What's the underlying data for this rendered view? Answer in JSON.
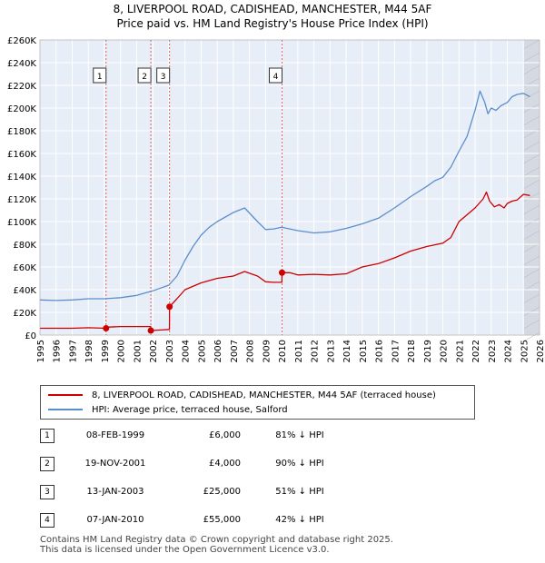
{
  "header": {
    "title_line1": "8, LIVERPOOL ROAD, CADISHEAD, MANCHESTER, M44 5AF",
    "title_line2": "Price paid vs. HM Land Registry's House Price Index (HPI)"
  },
  "legend": {
    "property": "8, LIVERPOOL ROAD, CADISHEAD, MANCHESTER, M44 5AF (terraced house)",
    "hpi": "HPI: Average price, terraced house, Salford"
  },
  "sales": [
    {
      "num": "1",
      "date": "08-FEB-1999",
      "price": "£6,000",
      "hpi": "81% ↓ HPI"
    },
    {
      "num": "2",
      "date": "19-NOV-2001",
      "price": "£4,000",
      "hpi": "90% ↓ HPI"
    },
    {
      "num": "3",
      "date": "13-JAN-2003",
      "price": "£25,000",
      "hpi": "51% ↓ HPI"
    },
    {
      "num": "4",
      "date": "07-JAN-2010",
      "price": "£55,000",
      "hpi": "42% ↓ HPI"
    }
  ],
  "footer": {
    "line1": "Contains HM Land Registry data © Crown copyright and database right 2025.",
    "line2": "This data is licensed under the Open Government Licence v3.0."
  },
  "colors": {
    "property": "#cc0000",
    "hpi": "#5b8fcc",
    "plot_bg": "#e8eef7",
    "grid": "#ffffff",
    "vline": "#e06060"
  },
  "chart_data": {
    "type": "line",
    "title": "8, LIVERPOOL ROAD, CADISHEAD, MANCHESTER, M44 5AF",
    "subtitle": "Price paid vs. HM Land Registry's House Price Index (HPI)",
    "xlim": [
      1995,
      2026
    ],
    "ylim": [
      0,
      260000
    ],
    "x_ticks": [
      "1995",
      "1996",
      "1997",
      "1998",
      "1999",
      "2000",
      "2001",
      "2002",
      "2003",
      "2004",
      "2005",
      "2006",
      "2007",
      "2008",
      "2009",
      "2010",
      "2011",
      "2012",
      "2013",
      "2014",
      "2015",
      "2016",
      "2017",
      "2018",
      "2019",
      "2020",
      "2021",
      "2022",
      "2023",
      "2024",
      "2025",
      "2026"
    ],
    "y_ticks": [
      {
        "v": 0,
        "label": "£0"
      },
      {
        "v": 20000,
        "label": "£20K"
      },
      {
        "v": 40000,
        "label": "£40K"
      },
      {
        "v": 60000,
        "label": "£60K"
      },
      {
        "v": 80000,
        "label": "£80K"
      },
      {
        "v": 100000,
        "label": "£100K"
      },
      {
        "v": 120000,
        "label": "£120K"
      },
      {
        "v": 140000,
        "label": "£140K"
      },
      {
        "v": 160000,
        "label": "£160K"
      },
      {
        "v": 180000,
        "label": "£180K"
      },
      {
        "v": 200000,
        "label": "£200K"
      },
      {
        "v": 220000,
        "label": "£220K"
      },
      {
        "v": 240000,
        "label": "£240K"
      },
      {
        "v": 260000,
        "label": "£260K"
      }
    ],
    "grid": true,
    "legend_position": "bottom",
    "markers": [
      {
        "label": "1",
        "x": 1999.1
      },
      {
        "label": "2",
        "x": 2001.88
      },
      {
        "label": "3",
        "x": 2003.04
      },
      {
        "label": "4",
        "x": 2010.02
      }
    ],
    "sale_points": [
      {
        "x": 1999.1,
        "y": 6000
      },
      {
        "x": 2001.88,
        "y": 4000
      },
      {
        "x": 2003.04,
        "y": 25000
      },
      {
        "x": 2010.02,
        "y": 55000
      }
    ],
    "future_shade_from": 2025.0,
    "series": [
      {
        "name": "8, LIVERPOOL ROAD, CADISHEAD, MANCHESTER, M44 5AF (terraced house)",
        "x": [
          1995,
          1996,
          1997,
          1998,
          1999.1,
          1999.11,
          2000,
          2001,
          2001.87,
          2001.88,
          2002.5,
          2003.03,
          2003.04,
          2003.5,
          2004,
          2005,
          2006,
          2007,
          2007.7,
          2008.5,
          2009,
          2009.5,
          2010.01,
          2010.02,
          2010.5,
          2011,
          2012,
          2013,
          2014,
          2015,
          2016,
          2017,
          2018,
          2019,
          2020,
          2020.5,
          2021,
          2021.5,
          2022,
          2022.5,
          2022.7,
          2022.9,
          2023.2,
          2023.5,
          2023.8,
          2024,
          2024.3,
          2024.6,
          2025,
          2025.4
        ],
        "y": [
          6000,
          6000,
          6000,
          6500,
          6000,
          7000,
          7500,
          7500,
          7500,
          4000,
          4500,
          5000,
          25000,
          32000,
          40000,
          46000,
          50000,
          52000,
          56000,
          52000,
          47000,
          46500,
          46500,
          55000,
          55000,
          53000,
          53500,
          53000,
          54000,
          60000,
          63000,
          68000,
          74000,
          78000,
          81000,
          86000,
          100000,
          106000,
          112000,
          120000,
          126000,
          118000,
          113000,
          115000,
          112000,
          116000,
          118000,
          119000,
          124000,
          123000
        ]
      },
      {
        "name": "HPI: Average price, terraced house, Salford",
        "x": [
          1995,
          1996,
          1997,
          1998,
          1999,
          2000,
          2001,
          2002,
          2003,
          2003.5,
          2004,
          2004.5,
          2005,
          2005.5,
          2006,
          2007,
          2007.7,
          2008.5,
          2009,
          2009.5,
          2010,
          2011,
          2012,
          2013,
          2014,
          2015,
          2016,
          2017,
          2018,
          2019,
          2019.5,
          2020,
          2020.5,
          2021,
          2021.5,
          2022,
          2022.3,
          2022.6,
          2022.8,
          2023,
          2023.3,
          2023.6,
          2024,
          2024.3,
          2024.6,
          2025,
          2025.4
        ],
        "y": [
          31000,
          30500,
          31000,
          32000,
          32000,
          33000,
          35000,
          39000,
          44000,
          52000,
          66000,
          78000,
          88000,
          95000,
          100000,
          108000,
          112000,
          100000,
          93000,
          93500,
          95000,
          92000,
          90000,
          91000,
          94000,
          98000,
          103000,
          112000,
          122000,
          131000,
          136000,
          139000,
          148000,
          162000,
          175000,
          198000,
          215000,
          205000,
          195000,
          200000,
          198000,
          202000,
          205000,
          210000,
          212000,
          213000,
          210000
        ]
      }
    ]
  }
}
